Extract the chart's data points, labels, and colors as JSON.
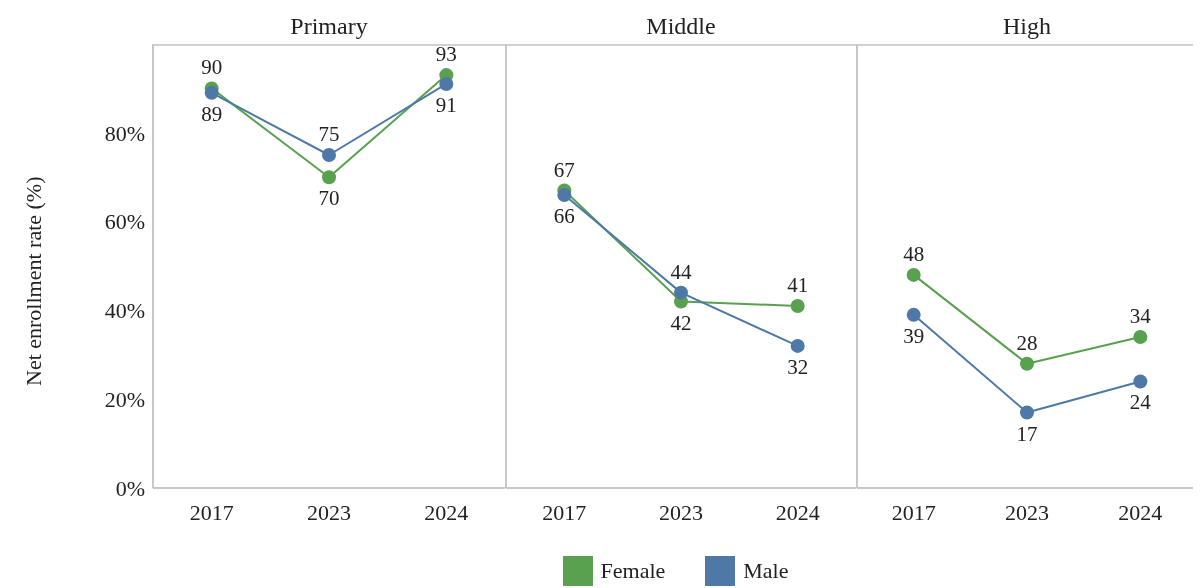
{
  "chart_data": [
    {
      "type": "line",
      "title": "Primary",
      "ylabel": "Net enrollment rate (%)",
      "categories": [
        "2017",
        "2023",
        "2024"
      ],
      "series": [
        {
          "name": "Female",
          "color": "#59a14f",
          "values": [
            90,
            70,
            93
          ]
        },
        {
          "name": "Male",
          "color": "#4e79a7",
          "values": [
            89,
            75,
            91
          ]
        }
      ],
      "ylim": [
        0,
        100
      ],
      "yticks": [
        {
          "value": 0,
          "label": "0%"
        },
        {
          "value": 20,
          "label": "20%"
        },
        {
          "value": 40,
          "label": "40%"
        },
        {
          "value": 60,
          "label": "60%"
        },
        {
          "value": 80,
          "label": "80%"
        }
      ],
      "data_labels": true,
      "marker": "circle",
      "grid": false,
      "legend": "bottom"
    },
    {
      "type": "line",
      "title": "Middle",
      "categories": [
        "2017",
        "2023",
        "2024"
      ],
      "series": [
        {
          "color": "#59a14f",
          "values": [
            67,
            42,
            41
          ]
        },
        {
          "color": "#4e79a7",
          "values": [
            66,
            44,
            32
          ]
        }
      ],
      "ylim": [
        0,
        100
      ],
      "tick_labels": "x",
      "data_labels": true,
      "marker": "circle",
      "grid": false
    },
    {
      "type": "line",
      "title": "High",
      "categories": [
        "2017",
        "2023",
        "2024"
      ],
      "series": [
        {
          "color": "#59a14f",
          "values": [
            48,
            28,
            34
          ]
        },
        {
          "color": "#4e79a7",
          "values": [
            39,
            17,
            24
          ]
        }
      ],
      "ylim": [
        0,
        100
      ],
      "tick_labels": "x",
      "data_labels": true,
      "marker": "circle",
      "grid": false
    }
  ]
}
